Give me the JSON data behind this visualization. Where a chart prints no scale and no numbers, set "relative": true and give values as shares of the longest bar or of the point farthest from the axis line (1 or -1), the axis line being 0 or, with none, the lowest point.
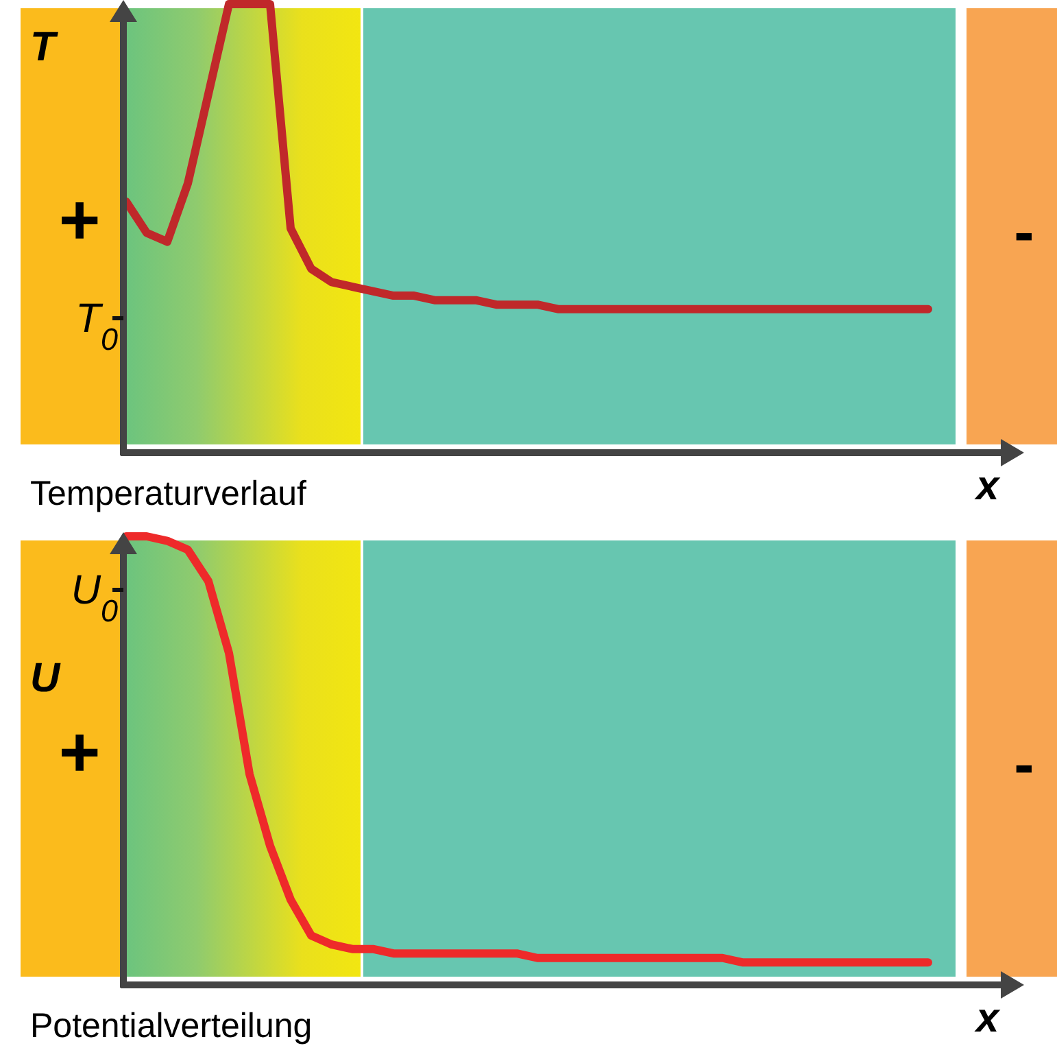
{
  "chart_data": [
    {
      "type": "line",
      "title": "Temperaturverlauf",
      "xlabel": "x",
      "ylabel": "T",
      "relative": true,
      "categories": [
        null,
        null,
        null,
        null,
        null,
        null,
        null,
        null,
        null,
        null,
        null,
        null,
        null,
        null,
        null,
        null,
        null,
        null,
        null,
        null,
        null,
        null,
        null,
        null,
        null,
        null,
        null,
        null,
        null,
        null,
        null,
        null,
        null,
        null,
        null,
        null,
        null,
        null,
        null,
        null
      ],
      "series": [
        {
          "color": "#c0282a",
          "values": [
            0.56,
            0.49,
            0.47,
            0.6,
            0.8,
            1,
            1,
            1,
            0.5,
            0.41,
            0.38,
            0.37,
            0.36,
            0.35,
            0.35,
            0.34,
            0.34,
            0.34,
            0.33,
            0.33,
            0.33,
            0.32,
            0.32,
            0.32,
            0.32,
            0.32,
            0.32,
            0.32,
            0.32,
            0.32,
            0.32,
            0.32,
            0.32,
            0.32,
            0.32,
            0.32,
            0.32,
            0.32,
            0.32,
            0.32
          ]
        }
      ],
      "annotations": [
        "T$_{0}$",
        "+",
        "-"
      ]
    },
    {
      "type": "line",
      "title": "Potentialverteilung",
      "xlabel": "x",
      "ylabel": "U",
      "relative": true,
      "categories": [
        null,
        null,
        null,
        null,
        null,
        null,
        null,
        null,
        null,
        null,
        null,
        null,
        null,
        null,
        null,
        null,
        null,
        null,
        null,
        null,
        null,
        null,
        null,
        null,
        null,
        null,
        null,
        null,
        null,
        null,
        null,
        null,
        null,
        null,
        null,
        null,
        null,
        null,
        null,
        null
      ],
      "series": [
        {
          "color": "#ee2a2a",
          "values": [
            1,
            1,
            0.99,
            0.97,
            0.9,
            0.74,
            0.47,
            0.31,
            0.19,
            0.11,
            0.09,
            0.08,
            0.08,
            0.07,
            0.07,
            0.07,
            0.07,
            0.07,
            0.07,
            0.07,
            0.06,
            0.06,
            0.06,
            0.06,
            0.06,
            0.06,
            0.06,
            0.06,
            0.06,
            0.06,
            0.05,
            0.05,
            0.05,
            0.05,
            0.05,
            0.05,
            0.05,
            0.05,
            0.05,
            0.05
          ]
        }
      ],
      "annotations": [
        "U$_{0}$",
        "+",
        "-"
      ]
    }
  ]
}
